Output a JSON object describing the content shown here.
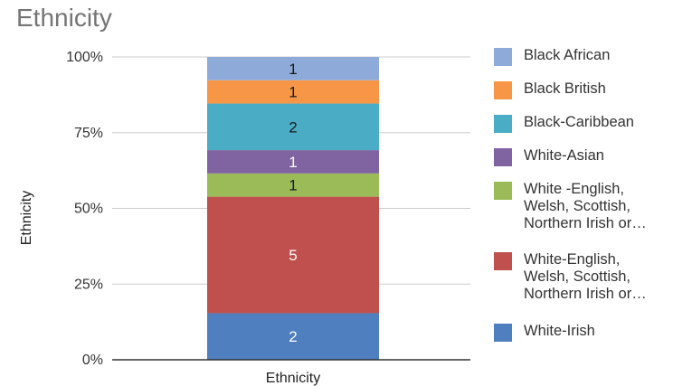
{
  "chart_data": {
    "type": "bar",
    "stacked": true,
    "normalized": true,
    "title": "Ethnicity",
    "xlabel": "Ethnicity",
    "ylabel": "Ethnicity",
    "categories": [
      "Ethnicity"
    ],
    "ylim": [
      0,
      100
    ],
    "yticks": [
      "0%",
      "25%",
      "50%",
      "75%",
      "100%"
    ],
    "grid": true,
    "legend_position": "right",
    "series": [
      {
        "name": "White-Irish",
        "values": [
          2
        ],
        "color": "#4f7fbf",
        "label_color": "#ffffff"
      },
      {
        "name": "White-English, Welsh, Scottish, Northern Irish or…",
        "values": [
          5
        ],
        "color": "#c0504d",
        "label_color": "#ffffff"
      },
      {
        "name": "White -English, Welsh, Scottish, Northern Irish or…",
        "values": [
          1
        ],
        "color": "#9bbb59",
        "label_color": "#1a1a1a"
      },
      {
        "name": "White-Asian",
        "values": [
          1
        ],
        "color": "#8064a2",
        "label_color": "#ffffff"
      },
      {
        "name": "Black-Caribbean",
        "values": [
          2
        ],
        "color": "#4bacc6",
        "label_color": "#1a1a1a"
      },
      {
        "name": "Black British",
        "values": [
          1
        ],
        "color": "#f79646",
        "label_color": "#1a1a1a"
      },
      {
        "name": "Black African",
        "values": [
          1
        ],
        "color": "#8eaad8",
        "label_color": "#1a1a1a"
      }
    ],
    "legend": [
      {
        "label": "Black African",
        "color": "#8eaad8"
      },
      {
        "label": "Black British",
        "color": "#f79646"
      },
      {
        "label": "Black-Caribbean",
        "color": "#4bacc6"
      },
      {
        "label": "White-Asian",
        "color": "#8064a2"
      },
      {
        "label": "White -English,\nWelsh, Scottish,\nNorthern Irish or…",
        "color": "#9bbb59"
      },
      {
        "label": "White-English,\nWelsh, Scottish,\nNorthern Irish or…",
        "color": "#c0504d"
      },
      {
        "label": "White-Irish",
        "color": "#4f7fbf"
      }
    ]
  }
}
